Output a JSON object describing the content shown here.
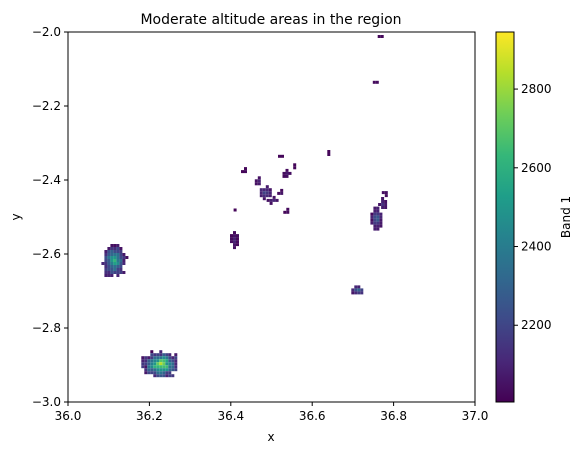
{
  "chart_data": {
    "type": "heatmap",
    "title": "Moderate altitude areas in the region",
    "xlabel": "x",
    "ylabel": "y",
    "xlim": [
      36.0,
      37.0
    ],
    "ylim": [
      -3.0,
      -2.0
    ],
    "x_ticks": [
      36.0,
      36.2,
      36.4,
      36.6,
      36.8,
      37.0
    ],
    "x_tick_labels": [
      "36.0",
      "36.2",
      "36.4",
      "36.6",
      "36.8",
      "37.0"
    ],
    "y_ticks": [
      -2.0,
      -2.2,
      -2.4,
      -2.6,
      -2.8,
      -3.0
    ],
    "y_tick_labels": [
      "−2.0",
      "−2.2",
      "−2.4",
      "−2.6",
      "−2.8",
      "−3.0"
    ],
    "colorbar": {
      "label": "Band 1",
      "range": [
        2005,
        2945
      ],
      "ticks": [
        2200,
        2400,
        2600,
        2800
      ],
      "tick_labels": [
        "2200",
        "2400",
        "2600",
        "2800"
      ],
      "colormap": [
        "#440154",
        "#482878",
        "#3e4a89",
        "#31688e",
        "#26828e",
        "#1f9e89",
        "#35b779",
        "#6ece58",
        "#b5de2b",
        "#fde725"
      ]
    },
    "regions": [
      {
        "x": 36.11,
        "y": -2.615,
        "rx": 0.028,
        "ry": 0.042,
        "peak": 2650,
        "base": 2080
      },
      {
        "x": 36.225,
        "y": -2.895,
        "rx": 0.045,
        "ry": 0.035,
        "peak": 2900,
        "base": 2080
      },
      {
        "x": 36.48,
        "y": -2.43,
        "rx": 0.016,
        "ry": 0.016,
        "peak": 2200,
        "base": 2060
      },
      {
        "x": 36.465,
        "y": -2.4,
        "rx": 0.006,
        "ry": 0.01,
        "peak": 2120,
        "base": 2040
      },
      {
        "x": 36.5,
        "y": -2.45,
        "rx": 0.012,
        "ry": 0.007,
        "peak": 2130,
        "base": 2050
      },
      {
        "x": 36.535,
        "y": -2.38,
        "rx": 0.008,
        "ry": 0.01,
        "peak": 2080,
        "base": 2030
      },
      {
        "x": 36.52,
        "y": -2.43,
        "rx": 0.006,
        "ry": 0.006,
        "peak": 2080,
        "base": 2030
      },
      {
        "x": 36.535,
        "y": -2.48,
        "rx": 0.006,
        "ry": 0.005,
        "peak": 2060,
        "base": 2020
      },
      {
        "x": 36.55,
        "y": -2.36,
        "rx": 0.004,
        "ry": 0.005,
        "peak": 2060,
        "base": 2020
      },
      {
        "x": 36.52,
        "y": -2.335,
        "rx": 0.004,
        "ry": 0.003,
        "peak": 2040,
        "base": 2020
      },
      {
        "x": 36.43,
        "y": -2.37,
        "rx": 0.005,
        "ry": 0.005,
        "peak": 2040,
        "base": 2020
      },
      {
        "x": 36.41,
        "y": -2.48,
        "rx": 0.003,
        "ry": 0.003,
        "peak": 2040,
        "base": 2020
      },
      {
        "x": 36.64,
        "y": -2.325,
        "rx": 0.003,
        "ry": 0.006,
        "peak": 2040,
        "base": 2020
      },
      {
        "x": 36.405,
        "y": -2.56,
        "rx": 0.007,
        "ry": 0.022,
        "peak": 2110,
        "base": 2030
      },
      {
        "x": 36.755,
        "y": -2.5,
        "rx": 0.012,
        "ry": 0.028,
        "peak": 2330,
        "base": 2060
      },
      {
        "x": 36.77,
        "y": -2.46,
        "rx": 0.008,
        "ry": 0.014,
        "peak": 2150,
        "base": 2050
      },
      {
        "x": 36.775,
        "y": -2.43,
        "rx": 0.004,
        "ry": 0.008,
        "peak": 2070,
        "base": 2030
      },
      {
        "x": 36.71,
        "y": -2.695,
        "rx": 0.014,
        "ry": 0.01,
        "peak": 2380,
        "base": 2080
      },
      {
        "x": 36.755,
        "y": -2.135,
        "rx": 0.006,
        "ry": 0.003,
        "peak": 2060,
        "base": 2030
      },
      {
        "x": 36.765,
        "y": -2.005,
        "rx": 0.004,
        "ry": 0.005,
        "peak": 2040,
        "base": 2020
      },
      {
        "x": 36.86,
        "y": -2.175,
        "rx": 0.004,
        "ry": 0.003,
        "peak": 2040,
        "base": 2020
      },
      {
        "x": 36.875,
        "y": -2.19,
        "rx": 0.002,
        "ry": 0.003,
        "peak": 2030,
        "base": 2020
      }
    ]
  }
}
